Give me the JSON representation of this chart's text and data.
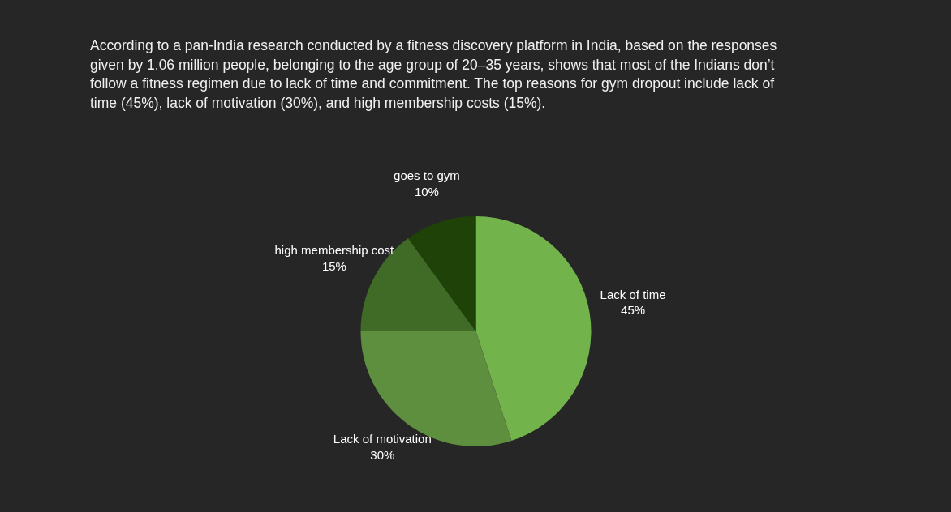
{
  "chart_data": {
    "type": "pie",
    "title": "According to a pan-India research conducted by a fitness discovery platform in India, based on the responses given by 1.06 million people, belonging to the age group of 20–35 years, shows that most of the Indians don’t follow a fitness regimen due to lack of time and commitment. The top reasons for gym dropout include lack of time (45%), lack of motivation (30%), and high membership costs (15%).",
    "categories": [
      "Lack of time",
      "Lack of motivation",
      "high membership cost",
      "goes to gym"
    ],
    "values": [
      45,
      30,
      15,
      10
    ],
    "value_labels": [
      "45%",
      "30%",
      "15%",
      "10%"
    ],
    "colors": [
      "#72b34c",
      "#5e8f3e",
      "#3f6b26",
      "#1e4208"
    ]
  }
}
